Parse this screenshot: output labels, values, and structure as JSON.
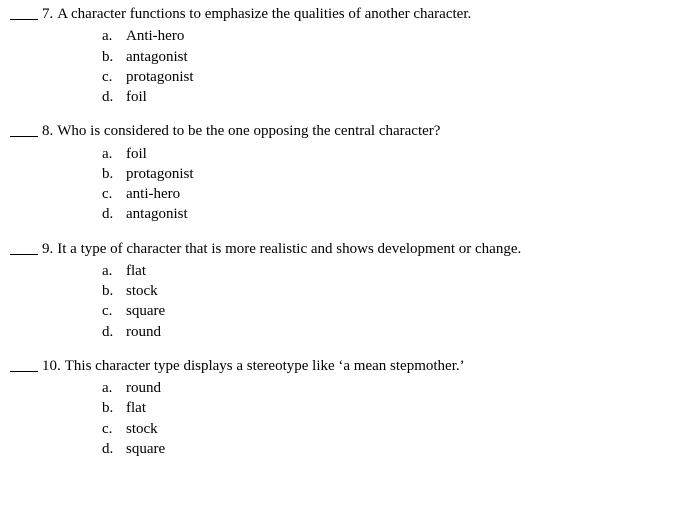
{
  "font_family": "Bookman Old Style, Century Schoolbook, Georgia, serif",
  "font_size_pt": 11,
  "text_color": "#000000",
  "background_color": "#ffffff",
  "option_letters": [
    "a.",
    "b.",
    "c.",
    "d."
  ],
  "questions": [
    {
      "number": "7.",
      "stem": "A character functions to emphasize the qualities of another character.",
      "options": [
        "Anti-hero",
        "antagonist",
        "protagonist",
        "foil"
      ]
    },
    {
      "number": "8.",
      "stem": "Who is considered to be the one opposing the central character?",
      "options": [
        "foil",
        "protagonist",
        "anti-hero",
        "antagonist"
      ]
    },
    {
      "number": "9.",
      "stem": "It a type of character that is more realistic and shows development or change.",
      "options": [
        "flat",
        "stock",
        "square",
        "round"
      ]
    },
    {
      "number": "10.",
      "stem": "This character type displays a stereotype like ‘a mean stepmother.’",
      "options": [
        "round",
        "flat",
        "stock",
        "square"
      ]
    }
  ]
}
